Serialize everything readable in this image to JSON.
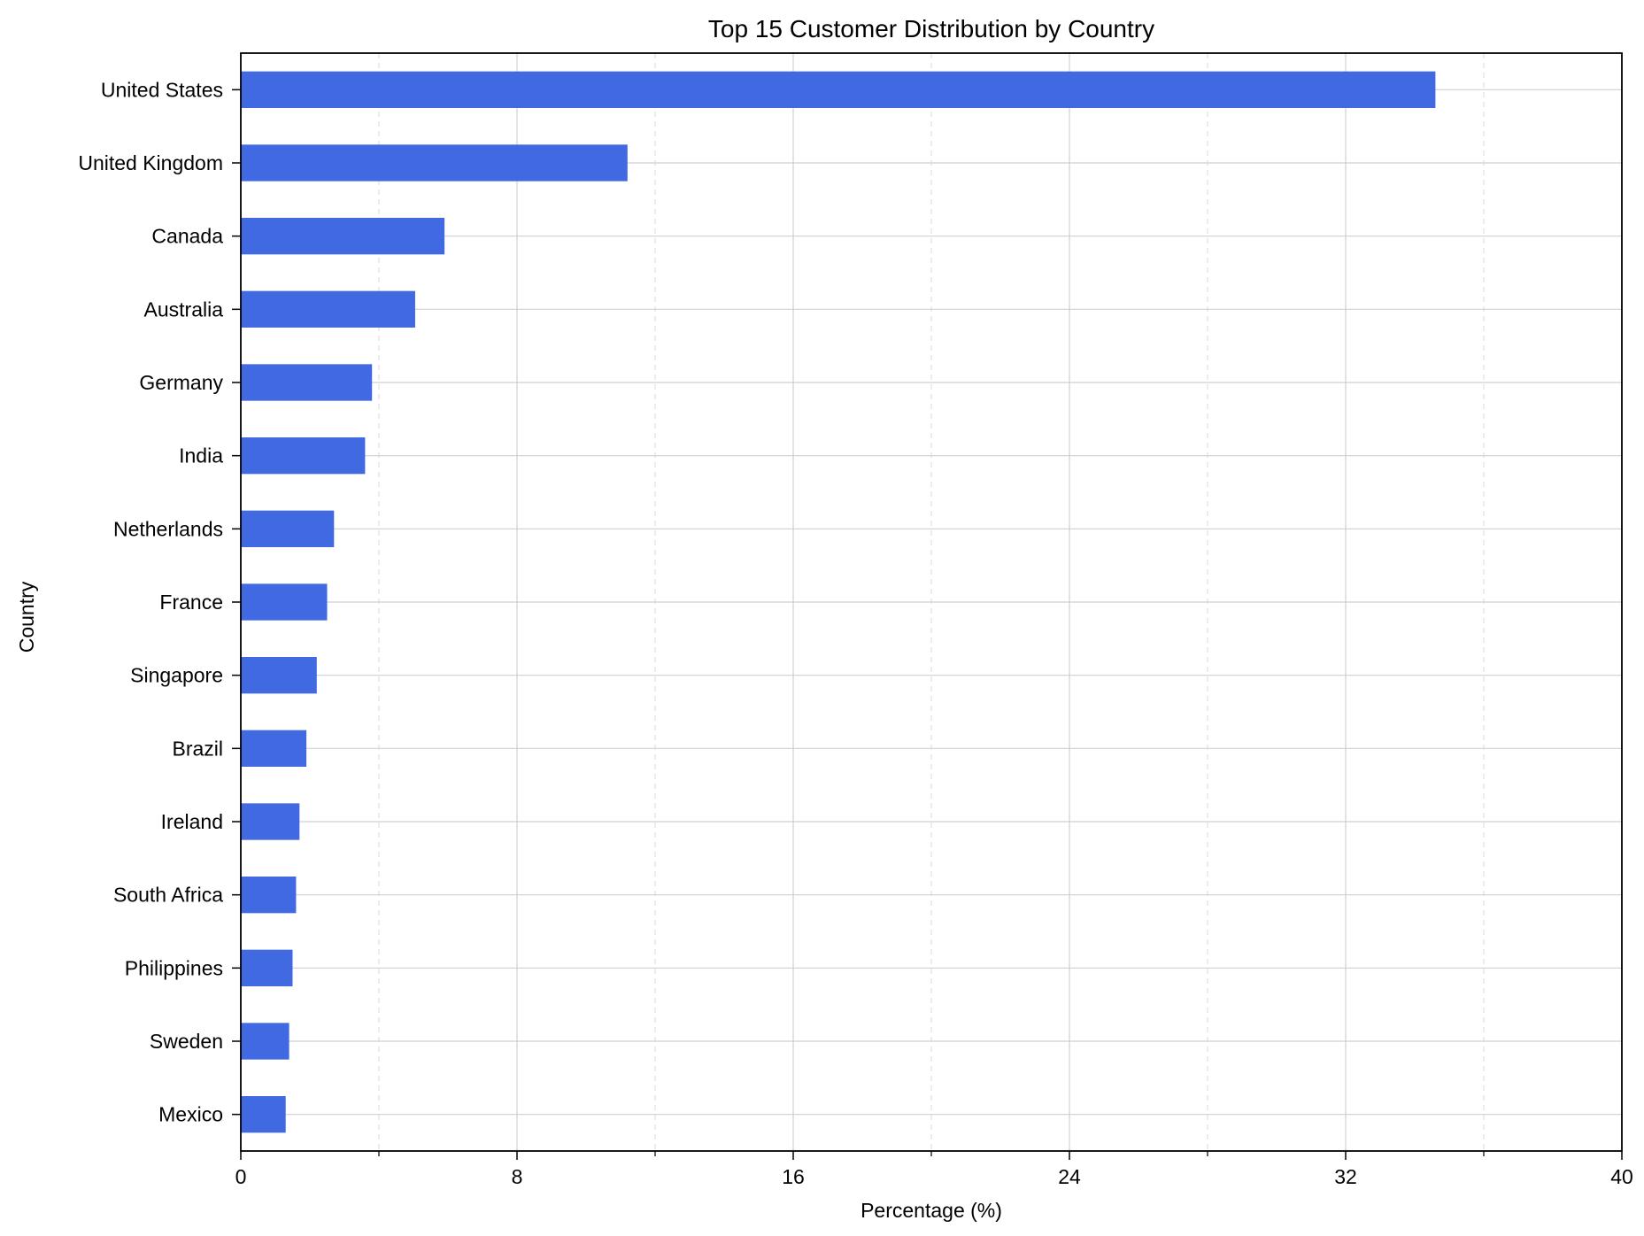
{
  "chart_data": {
    "type": "bar",
    "orientation": "horizontal",
    "title": "Top 15 Customer Distribution by Country",
    "xlabel": "Percentage (%)",
    "ylabel": "Country",
    "categories": [
      "United States",
      "United Kingdom",
      "Canada",
      "Australia",
      "Germany",
      "India",
      "Netherlands",
      "France",
      "Singapore",
      "Brazil",
      "Ireland",
      "South Africa",
      "Philippines",
      "Sweden",
      "Mexico"
    ],
    "values": [
      34.6,
      11.2,
      5.9,
      5.05,
      3.8,
      3.6,
      2.7,
      2.5,
      2.2,
      1.9,
      1.7,
      1.6,
      1.5,
      1.4,
      1.3
    ],
    "xlim": [
      0,
      40
    ],
    "xticks": [
      "0",
      "8",
      "16",
      "24",
      "32",
      "40"
    ],
    "minor_xtick_step": 4,
    "grid": true,
    "bar_color": "#4169E1"
  }
}
